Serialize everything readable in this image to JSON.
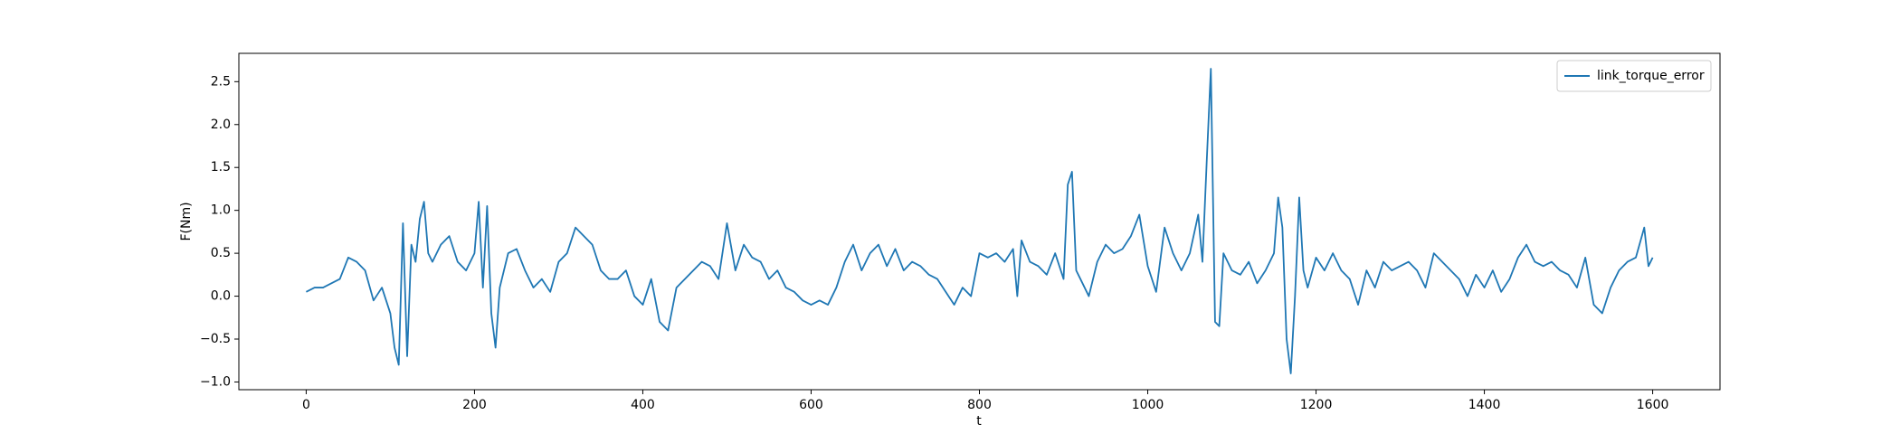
{
  "chart_data": {
    "type": "line",
    "xlabel": "t",
    "ylabel": "F(Nm)",
    "x": [
      0,
      10,
      20,
      30,
      40,
      50,
      60,
      70,
      80,
      90,
      100,
      105,
      110,
      115,
      120,
      125,
      130,
      135,
      140,
      145,
      150,
      160,
      170,
      180,
      190,
      200,
      205,
      210,
      215,
      220,
      225,
      230,
      240,
      250,
      260,
      270,
      280,
      290,
      300,
      310,
      320,
      330,
      340,
      350,
      360,
      370,
      380,
      390,
      400,
      410,
      420,
      430,
      440,
      450,
      460,
      470,
      480,
      490,
      500,
      510,
      520,
      530,
      540,
      550,
      560,
      570,
      580,
      590,
      600,
      610,
      620,
      630,
      640,
      650,
      660,
      670,
      680,
      690,
      700,
      710,
      720,
      730,
      740,
      750,
      760,
      770,
      780,
      790,
      800,
      810,
      820,
      830,
      840,
      845,
      850,
      860,
      870,
      880,
      890,
      900,
      905,
      910,
      915,
      920,
      930,
      940,
      950,
      960,
      970,
      980,
      990,
      1000,
      1010,
      1020,
      1030,
      1040,
      1050,
      1060,
      1065,
      1070,
      1075,
      1080,
      1085,
      1090,
      1100,
      1110,
      1120,
      1130,
      1140,
      1150,
      1155,
      1160,
      1165,
      1170,
      1175,
      1180,
      1185,
      1190,
      1200,
      1210,
      1220,
      1230,
      1240,
      1250,
      1260,
      1270,
      1280,
      1290,
      1300,
      1310,
      1320,
      1330,
      1340,
      1350,
      1360,
      1370,
      1380,
      1390,
      1400,
      1410,
      1420,
      1430,
      1440,
      1450,
      1460,
      1470,
      1480,
      1490,
      1500,
      1510,
      1520,
      1530,
      1540,
      1550,
      1560,
      1570,
      1580,
      1590,
      1595,
      1600
    ],
    "series": [
      {
        "name": "link_torque_error",
        "color": "#1f77b4",
        "values": [
          0.05,
          0.1,
          0.1,
          0.15,
          0.2,
          0.45,
          0.4,
          0.3,
          -0.05,
          0.1,
          -0.2,
          -0.6,
          -0.8,
          0.85,
          -0.7,
          0.6,
          0.4,
          0.9,
          1.1,
          0.5,
          0.4,
          0.6,
          0.7,
          0.4,
          0.3,
          0.5,
          1.1,
          0.1,
          1.05,
          -0.2,
          -0.6,
          0.1,
          0.5,
          0.55,
          0.3,
          0.1,
          0.2,
          0.05,
          0.4,
          0.5,
          0.8,
          0.7,
          0.6,
          0.3,
          0.2,
          0.2,
          0.3,
          0.0,
          -0.1,
          0.2,
          -0.3,
          -0.4,
          0.1,
          0.2,
          0.3,
          0.4,
          0.35,
          0.2,
          0.85,
          0.3,
          0.6,
          0.45,
          0.4,
          0.2,
          0.3,
          0.1,
          0.05,
          -0.05,
          -0.1,
          -0.05,
          -0.1,
          0.1,
          0.4,
          0.6,
          0.3,
          0.5,
          0.6,
          0.35,
          0.55,
          0.3,
          0.4,
          0.35,
          0.25,
          0.2,
          0.05,
          -0.1,
          0.1,
          0.0,
          0.5,
          0.45,
          0.5,
          0.4,
          0.55,
          0.0,
          0.65,
          0.4,
          0.35,
          0.25,
          0.5,
          0.2,
          1.3,
          1.45,
          0.3,
          0.2,
          0.0,
          0.4,
          0.6,
          0.5,
          0.55,
          0.7,
          0.95,
          0.35,
          0.05,
          0.8,
          0.5,
          0.3,
          0.5,
          0.95,
          0.4,
          1.55,
          2.65,
          -0.3,
          -0.35,
          0.5,
          0.3,
          0.25,
          0.4,
          0.15,
          0.3,
          0.5,
          1.15,
          0.8,
          -0.5,
          -0.9,
          0.0,
          1.15,
          0.3,
          0.1,
          0.45,
          0.3,
          0.5,
          0.3,
          0.2,
          -0.1,
          0.3,
          0.1,
          0.4,
          0.3,
          0.35,
          0.4,
          0.3,
          0.1,
          0.5,
          0.4,
          0.3,
          0.2,
          0.0,
          0.25,
          0.1,
          0.3,
          0.05,
          0.2,
          0.45,
          0.6,
          0.4,
          0.35,
          0.4,
          0.3,
          0.25,
          0.1,
          0.45,
          -0.1,
          -0.2,
          0.1,
          0.3,
          0.4,
          0.45,
          0.8,
          0.35,
          0.45
        ]
      }
    ],
    "xlim": [
      -80,
      1680
    ],
    "xticks": [
      0,
      200,
      400,
      600,
      800,
      1000,
      1200,
      1400,
      1600
    ],
    "ylim": [
      -1.09,
      2.83
    ],
    "yticks": [
      {
        "value": -1,
        "label": "−1.0"
      },
      {
        "value": -0.5,
        "label": "−0.5"
      },
      {
        "value": 0,
        "label": "0.0"
      },
      {
        "value": 0.5,
        "label": "0.5"
      },
      {
        "value": 1,
        "label": "1.0"
      },
      {
        "value": 1.5,
        "label": "1.5"
      },
      {
        "value": 2,
        "label": "2.0"
      },
      {
        "value": 2.5,
        "label": "2.5"
      }
    ],
    "legend": "upper right"
  }
}
